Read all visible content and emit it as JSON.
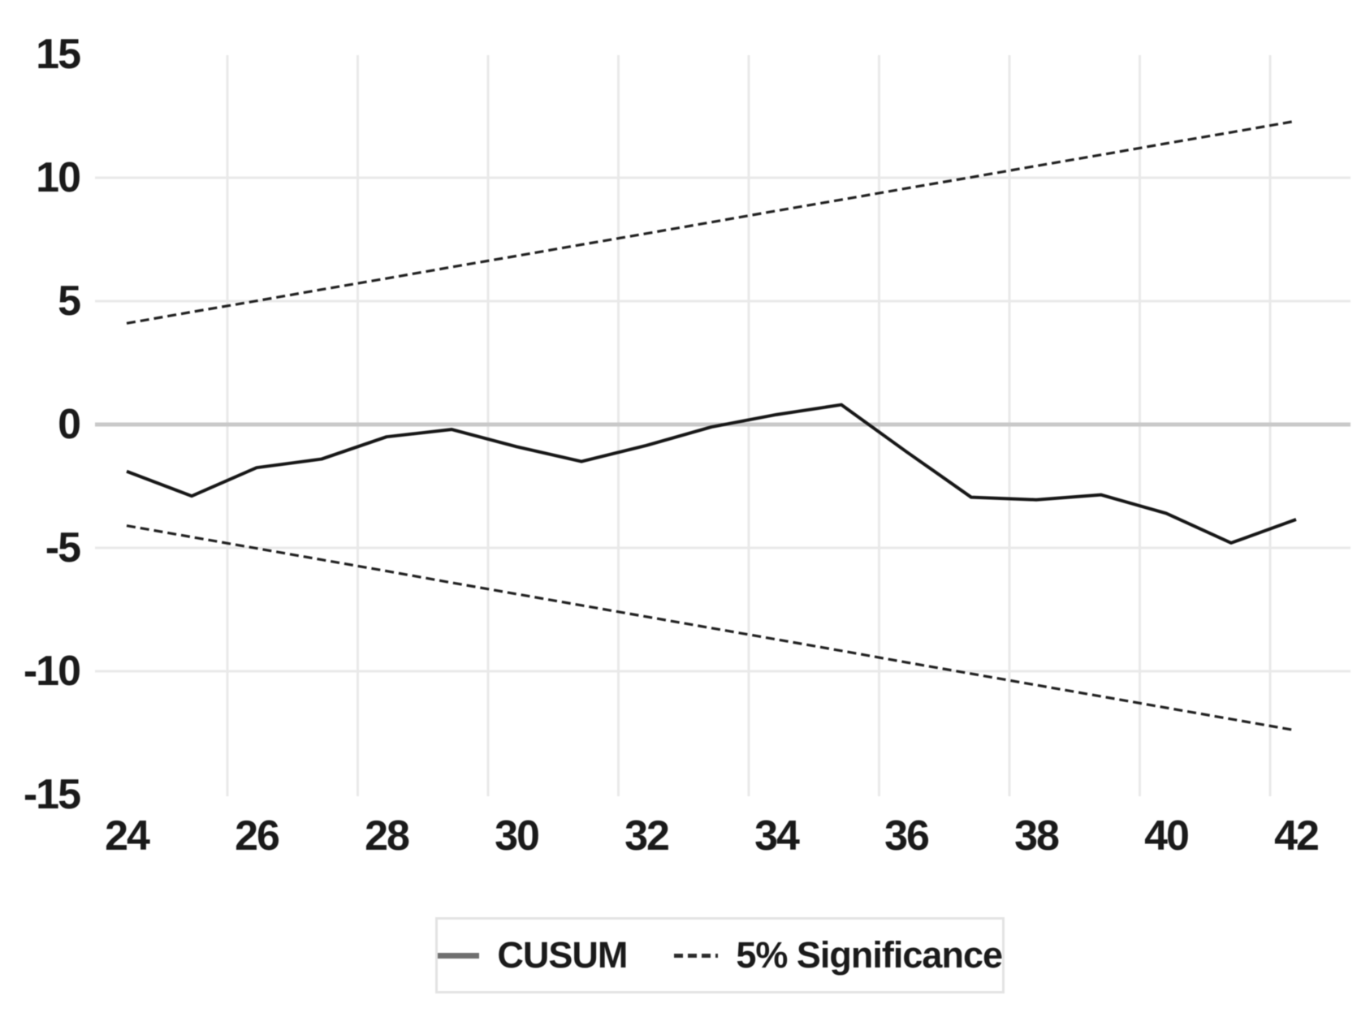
{
  "chart_data": {
    "type": "line",
    "title": "",
    "xlabel": "",
    "ylabel": "",
    "x": [
      24,
      25,
      26,
      27,
      28,
      29,
      30,
      31,
      32,
      33,
      34,
      35,
      36,
      37,
      38,
      39,
      40,
      41,
      42
    ],
    "series": [
      {
        "name": "CUSUM",
        "style": "solid",
        "color": "#161616",
        "values": [
          -1.9,
          -2.9,
          -1.75,
          -1.4,
          -0.5,
          -0.2,
          -0.9,
          -1.5,
          -0.85,
          -0.1,
          0.4,
          0.8,
          -1.1,
          -2.95,
          -3.05,
          -2.85,
          -3.6,
          -4.8,
          -3.85
        ]
      },
      {
        "name": "5% Significance (upper)",
        "style": "dashed",
        "color": "#1f1f1f",
        "values": [
          4.1,
          4.56,
          5.01,
          5.47,
          5.92,
          6.38,
          6.83,
          7.29,
          7.74,
          8.2,
          8.66,
          9.11,
          9.57,
          10.02,
          10.48,
          10.93,
          11.39,
          11.84,
          12.3
        ]
      },
      {
        "name": "5% Significance (lower)",
        "style": "dashed",
        "color": "#1f1f1f",
        "values": [
          -4.1,
          -4.56,
          -5.02,
          -5.48,
          -5.94,
          -6.41,
          -6.87,
          -7.33,
          -7.79,
          -8.25,
          -8.71,
          -9.17,
          -9.64,
          -10.1,
          -10.56,
          -11.02,
          -11.48,
          -11.94,
          -12.4
        ]
      }
    ],
    "x_ticks": [
      24,
      26,
      28,
      30,
      32,
      34,
      36,
      38,
      40,
      42
    ],
    "y_ticks": [
      15,
      10,
      5,
      0,
      -5,
      -10,
      -15
    ],
    "xlim": [
      24,
      42
    ],
    "ylim": [
      -15,
      15
    ],
    "grid": true,
    "gridline_values_horizontal": [
      10,
      5,
      0,
      -5,
      -10
    ],
    "gridline_values_vertical": [
      26,
      28,
      30,
      32,
      34,
      36,
      38,
      40,
      42
    ],
    "legend_position": "bottom"
  },
  "axes": {
    "y_tick_labels": [
      "15",
      "10",
      "5",
      "0",
      "-5",
      "-10",
      "-15"
    ],
    "x_tick_labels": [
      "24",
      "26",
      "28",
      "30",
      "32",
      "34",
      "36",
      "38",
      "40",
      "42"
    ]
  },
  "legend": {
    "items": [
      {
        "label": "CUSUM",
        "swatch": "solid-line"
      },
      {
        "label": "5% Significance",
        "swatch": "dashed-line"
      }
    ]
  },
  "colors": {
    "background": "#ffffff",
    "grid": "#e9e9e9",
    "zero_line": "#c9c9c9",
    "cusum_line": "#161616",
    "significance_line": "#1f1f1f",
    "legend_swatch_solid": "#6f6f6f",
    "legend_border": "#e3e3e3",
    "text": "#1a1a1a"
  }
}
